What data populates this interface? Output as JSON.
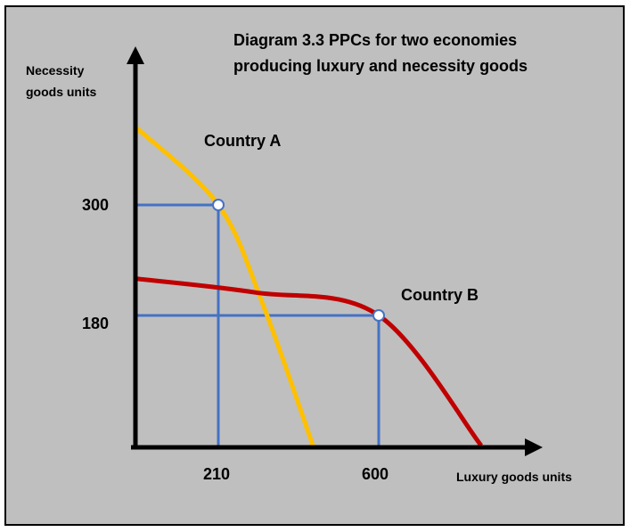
{
  "chart_data": {
    "type": "line",
    "title_lines": [
      "Diagram 3.3 PPCs for two economies",
      "producing luxury and necessity goods"
    ],
    "xlabel": "Luxury goods units",
    "ylabel_lines": [
      "Necessity",
      "goods units"
    ],
    "x_ticks": [
      "210",
      "600"
    ],
    "y_ticks": [
      "300",
      "180"
    ],
    "series": [
      {
        "name": "Country A",
        "color": "#ffc000",
        "points": [
          [
            0,
            405
          ],
          [
            210,
            300
          ],
          [
            320,
            190
          ],
          [
            440,
            0
          ]
        ]
      },
      {
        "name": "Country B",
        "color": "#c00000",
        "points": [
          [
            0,
            220
          ],
          [
            300,
            205
          ],
          [
            600,
            180
          ],
          [
            860,
            0
          ]
        ]
      }
    ],
    "marked_points": [
      {
        "x": 210,
        "y": 300,
        "series": "Country A"
      },
      {
        "x": 600,
        "y": 180,
        "series": "Country B"
      }
    ],
    "guide_line_color": "#4472c4",
    "curve_a_color": "#ffc000",
    "curve_b_color": "#c00000",
    "grid": false
  }
}
